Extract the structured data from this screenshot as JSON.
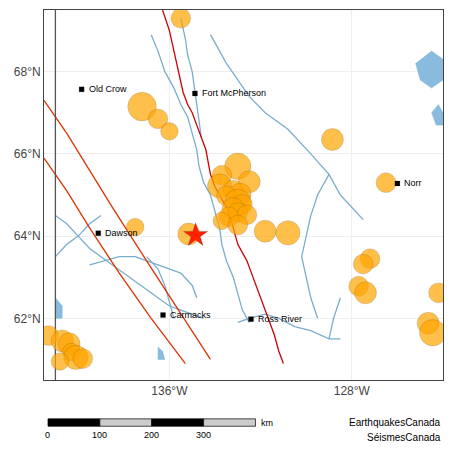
{
  "chart_data": {
    "type": "scatter",
    "xlim": [
      -141.5,
      -124.0
    ],
    "ylim": [
      60.5,
      69.5
    ],
    "xticks": [
      {
        "value": -136,
        "label": "136°W"
      },
      {
        "value": -128,
        "label": "128°W"
      }
    ],
    "yticks": [
      {
        "value": 62,
        "label": "62°N"
      },
      {
        "value": 64,
        "label": "64°N"
      },
      {
        "value": 66,
        "label": "66°N"
      },
      {
        "value": 68,
        "label": "68°N"
      }
    ],
    "grid": true,
    "series": [
      {
        "type": "line",
        "color": "#7aadcc",
        "x": [
          -136.8,
          -136.5,
          -136.2,
          -135.8,
          -135.5,
          -135.2,
          -135.0,
          -134.8,
          -134.7
        ],
        "values": [
          68.9,
          68.5,
          68.0,
          67.6,
          67.2,
          66.9,
          66.5,
          66.1,
          65.7
        ]
      },
      {
        "type": "line",
        "color": "#7aadcc",
        "x": [
          -134.2,
          -133.8,
          -133.5,
          -133.0,
          -132.5,
          -131.8,
          -130.8,
          -129.8,
          -129.0,
          -128.5,
          -128.0,
          -127.5
        ],
        "values": [
          68.9,
          68.5,
          68.2,
          67.8,
          67.4,
          67.0,
          66.6,
          66.0,
          65.5,
          65.0,
          64.7,
          64.4
        ]
      },
      {
        "type": "line",
        "color": "#7aadcc",
        "x": [
          -134.7,
          -134.5,
          -134.2,
          -134.0,
          -133.8,
          -133.7,
          -133.5,
          -133.2,
          -133.0,
          -132.8,
          -132.5
        ],
        "values": [
          65.7,
          65.3,
          65.0,
          64.6,
          64.2,
          63.8,
          63.4,
          63.0,
          62.6,
          62.2,
          61.9
        ]
      },
      {
        "type": "line",
        "color": "#7aadcc",
        "x": [
          -141.0,
          -140.5,
          -140.0,
          -139.5,
          -139.0,
          -138.5,
          -138.0,
          -137.5,
          -137.0,
          -136.5,
          -136.0,
          -135.5,
          -135.0,
          -134.5
        ],
        "values": [
          64.5,
          64.3,
          64.0,
          63.7,
          63.5,
          63.3,
          63.1,
          62.9,
          62.7,
          62.5,
          62.3,
          62.2,
          62.1,
          62.0
        ]
      },
      {
        "type": "line",
        "color": "#7aadcc",
        "x": [
          -139.5,
          -138.8,
          -138.2,
          -137.5,
          -137.0,
          -136.5,
          -136.0,
          -135.5,
          -135.0,
          -134.8
        ],
        "values": [
          63.3,
          63.4,
          63.5,
          63.5,
          63.4,
          63.3,
          63.2,
          63.1,
          62.8,
          62.5
        ]
      },
      {
        "type": "line",
        "color": "#7aadcc",
        "x": [
          -128.5,
          -129.0,
          -129.8,
          -130.5,
          -131.2,
          -131.8,
          -132.5,
          -133.0
        ],
        "values": [
          61.5,
          61.5,
          61.7,
          61.8,
          62.0,
          62.1,
          62.0,
          61.9
        ]
      },
      {
        "type": "line",
        "color": "#7aadcc",
        "x": [
          -135.5,
          -135.3,
          -135.2,
          -135.0,
          -134.9,
          -134.8,
          -134.7,
          -134.6
        ],
        "values": [
          69.3,
          68.8,
          68.4,
          68.0,
          67.6,
          67.2,
          66.8,
          66.4
        ]
      },
      {
        "type": "line",
        "color": "#7aadcc",
        "x": [
          -141.0,
          -140.5,
          -140.0,
          -139.5,
          -139.0
        ],
        "values": [
          63.5,
          63.8,
          64.0,
          64.3,
          64.5
        ]
      },
      {
        "type": "line",
        "color": "#7aadcc",
        "x": [
          -137.0,
          -136.5,
          -136.2,
          -136.0,
          -135.8
        ],
        "values": [
          63.5,
          63.2,
          62.8,
          62.4,
          62.0
        ]
      },
      {
        "type": "line",
        "color": "#7aadcc",
        "x": [
          -129.0,
          -129.5,
          -129.8,
          -130.0,
          -130.2,
          -130.0,
          -129.8,
          -129.5
        ],
        "values": [
          65.5,
          65.0,
          64.5,
          64.0,
          63.5,
          63.0,
          62.5,
          62.0
        ]
      },
      {
        "type": "line",
        "color": "#7aadcc",
        "x": [
          -128.5,
          -128.8,
          -129.0
        ],
        "values": [
          62.5,
          62.0,
          61.5
        ]
      },
      {
        "type": "area",
        "color": "#88bbdd",
        "x": [
          -124.5,
          -124.0,
          -124.0,
          -124.5,
          -125.0,
          -125.2,
          -124.5
        ],
        "values": [
          68.5,
          68.3,
          67.8,
          67.6,
          67.8,
          68.2,
          68.5
        ]
      },
      {
        "type": "area",
        "color": "#88bbdd",
        "x": [
          -124.2,
          -124.0,
          -124.0,
          -124.3,
          -124.5,
          -124.2
        ],
        "values": [
          67.2,
          67.0,
          66.7,
          66.7,
          67.0,
          67.2
        ]
      },
      {
        "type": "area",
        "color": "#88bbdd",
        "x": [
          -141.0,
          -140.7,
          -140.7,
          -141.0,
          -141.0
        ],
        "values": [
          62.5,
          62.3,
          62.0,
          62.0,
          62.5
        ]
      },
      {
        "type": "area",
        "color": "#88bbdd",
        "x": [
          -136.5,
          -136.3,
          -136.2,
          -136.5,
          -136.5
        ],
        "values": [
          61.3,
          61.2,
          61.0,
          61.0,
          61.3
        ]
      },
      {
        "type": "line",
        "color": "#cc0000",
        "x": [
          -136.3,
          -136.0,
          -135.8,
          -135.6,
          -135.4,
          -135.2,
          -135.0,
          -134.8,
          -134.6,
          -134.4,
          -134.3,
          -134.2,
          -134.0,
          -133.8,
          -133.6,
          -133.4,
          -133.3,
          -133.2,
          -133.1,
          -133.0,
          -132.8,
          -132.6,
          -132.4,
          -132.2,
          -132.0,
          -131.8,
          -131.6,
          -131.4,
          -131.2,
          -131.0
        ],
        "values": [
          69.5,
          69.0,
          68.5,
          68.0,
          67.5,
          67.2,
          67.0,
          66.7,
          66.4,
          66.1,
          65.8,
          65.5,
          65.2,
          65.0,
          64.8,
          64.6,
          64.4,
          64.2,
          64.0,
          63.8,
          63.6,
          63.4,
          63.1,
          62.8,
          62.5,
          62.2,
          61.9,
          61.6,
          61.2,
          60.9
        ]
      },
      {
        "type": "line",
        "color": "#dd3300",
        "x": [
          -141.5,
          -140.5,
          -139.5,
          -138.5,
          -137.0,
          -135.5,
          -134.2
        ],
        "values": [
          67.3,
          66.5,
          65.6,
          64.7,
          63.4,
          62.1,
          61.0
        ]
      },
      {
        "type": "line",
        "color": "#dd3300",
        "x": [
          -141.5,
          -140.5,
          -139.5,
          -138.2,
          -136.8,
          -135.3
        ],
        "values": [
          65.9,
          65.1,
          64.2,
          63.1,
          62.0,
          60.9
        ]
      },
      {
        "type": "line",
        "color": "#555555",
        "x": [
          -141.0,
          -141.0
        ],
        "values": [
          60.5,
          69.5
        ]
      },
      {
        "type": "scatter",
        "marker": "circle",
        "color": "#ffa500",
        "x": [
          -135.5,
          -137.2,
          -136.5,
          -136.0,
          -128.85,
          -133.0,
          -133.7,
          -132.5,
          -133.8,
          -133.2,
          -132.9,
          -133.5,
          -133.0,
          -132.8,
          -133.2,
          -133.0,
          -132.6,
          -133.4,
          -133.7,
          -133.0,
          -131.8,
          -130.8,
          -137.5,
          -135.15,
          -126.5,
          -127.2,
          -127.5,
          -127.7,
          -127.4,
          -141.3,
          -140.7,
          -140.4,
          -140.3,
          -140.1,
          -139.8,
          -140.8,
          -124.2,
          -124.65,
          -124.45
        ],
        "values": [
          69.3,
          67.15,
          66.85,
          66.55,
          66.35,
          65.7,
          65.48,
          65.32,
          65.22,
          65.12,
          65.02,
          64.98,
          64.82,
          64.77,
          64.67,
          64.57,
          64.52,
          64.47,
          64.37,
          64.27,
          64.12,
          64.08,
          64.22,
          64.05,
          65.3,
          63.45,
          63.32,
          62.78,
          62.62,
          61.58,
          61.45,
          61.38,
          61.18,
          61.05,
          61.02,
          60.95,
          62.62,
          61.88,
          61.65
        ],
        "sizes": [
          9,
          13,
          9,
          8,
          10,
          12,
          9,
          10,
          11,
          9,
          10,
          9,
          12,
          9,
          10,
          9,
          9,
          9,
          8,
          9,
          10,
          11,
          8,
          10,
          9,
          9,
          9,
          9,
          10,
          9,
          10,
          10,
          8,
          11,
          9,
          8,
          9,
          10,
          12
        ]
      },
      {
        "type": "scatter",
        "marker": "star",
        "color": "#ff2200",
        "x": [
          -134.85
        ],
        "values": [
          64.02
        ]
      },
      {
        "type": "scatter",
        "marker": "square",
        "color": "black",
        "x": [
          -139.85,
          -134.88,
          -139.12,
          -136.28,
          -132.42,
          -126.0
        ],
        "values": [
          67.57,
          67.47,
          64.07,
          62.08,
          61.98,
          65.28
        ]
      }
    ],
    "annotations": [
      {
        "text": "Old Crow",
        "x": -139.85,
        "y": 67.57
      },
      {
        "text": "Fort McPherson",
        "x": -134.88,
        "y": 67.47
      },
      {
        "text": "Dawson",
        "x": -139.12,
        "y": 64.07
      },
      {
        "text": "Carmacks",
        "x": -136.28,
        "y": 62.08
      },
      {
        "text": "Ross River",
        "x": -132.42,
        "y": 61.98
      },
      {
        "text": "Norr",
        "x": -126.0,
        "y": 65.28
      },
      {
        "text": "EarthquakesCanada"
      },
      {
        "text": "SéismesCanada"
      }
    ],
    "scale_bar": {
      "ticks": [
        0,
        100,
        200,
        300
      ],
      "unit": "km"
    }
  }
}
